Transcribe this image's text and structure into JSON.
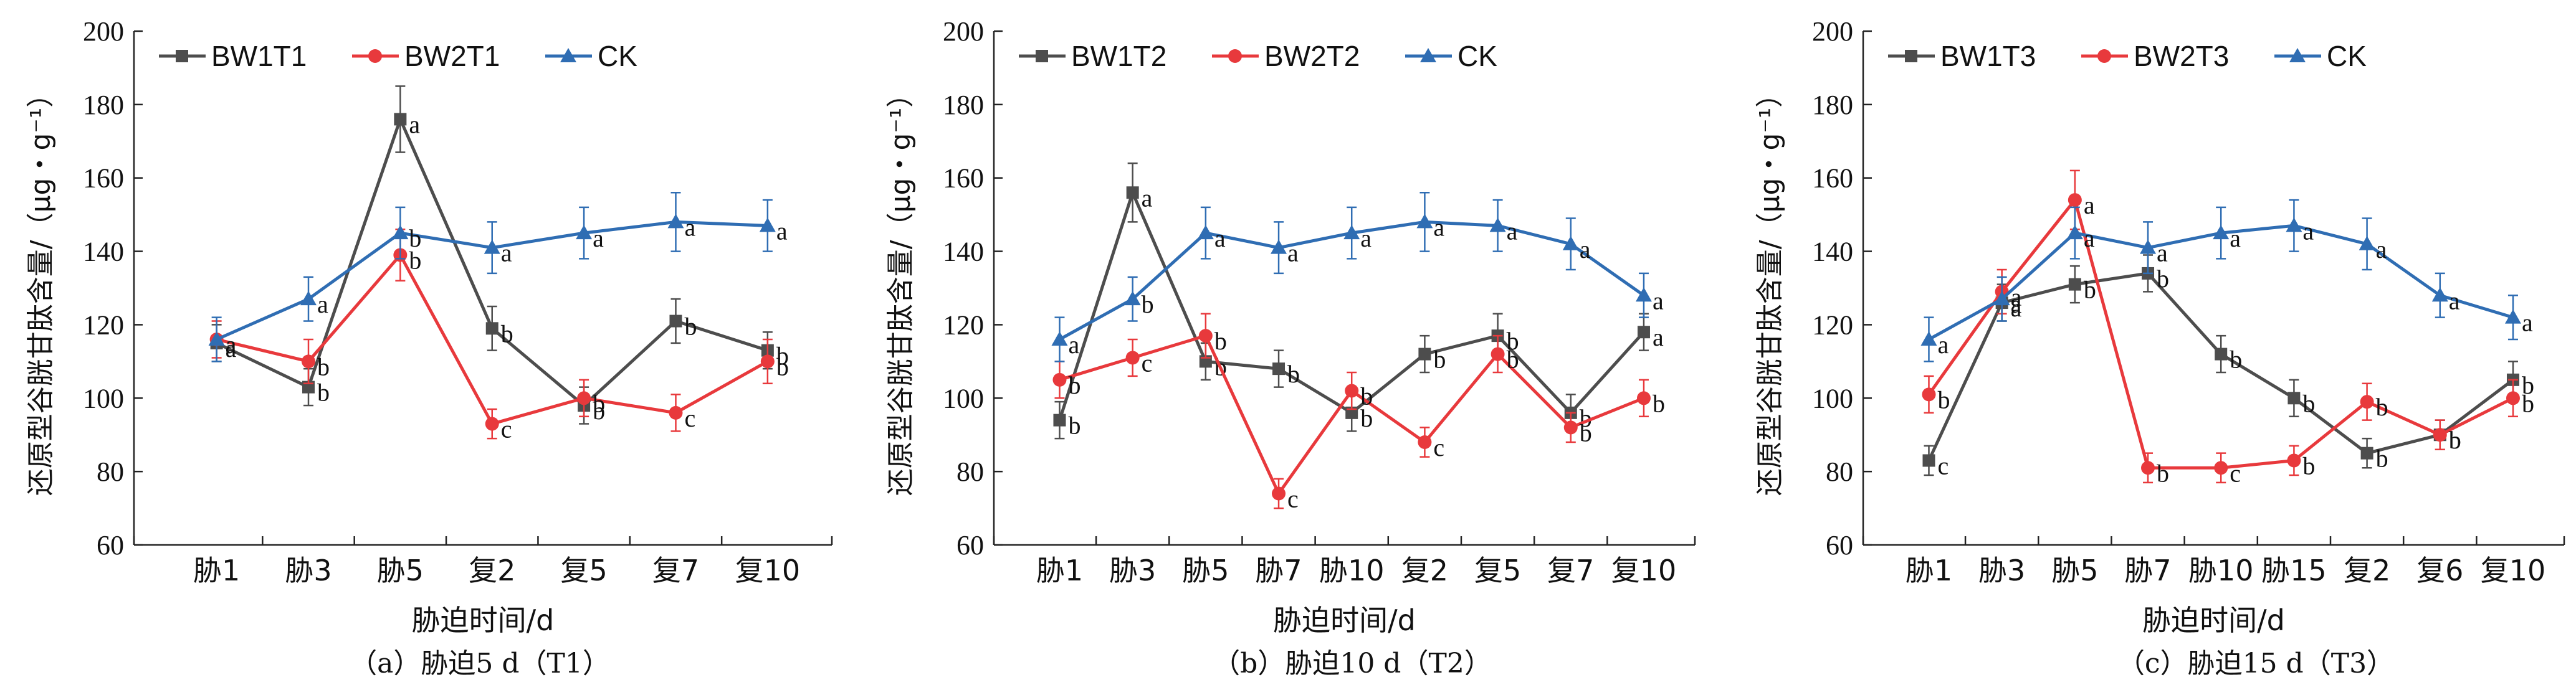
{
  "chart_data": [
    {
      "type": "line",
      "panel_caption": "（a）胁迫5 d（T1）",
      "xlabel": "胁迫时间/d",
      "ylabel": "还原型谷胱甘肽含量/（μg・g⁻¹）",
      "ylim": [
        60,
        200
      ],
      "yticks": [
        60,
        80,
        100,
        120,
        140,
        160,
        180,
        200
      ],
      "categories": [
        "胁1",
        "胁3",
        "胁5",
        "复2",
        "复5",
        "复7",
        "复10"
      ],
      "series": [
        {
          "name": "BW1T1",
          "color": "#4d4d4d",
          "marker": "square",
          "values": [
            115,
            103,
            176,
            119,
            98,
            121,
            113
          ],
          "errors": [
            5,
            5,
            9,
            6,
            5,
            6,
            5
          ],
          "letters": [
            "a",
            "b",
            "a",
            "b",
            "b",
            "b",
            "b"
          ]
        },
        {
          "name": "BW2T1",
          "color": "#e8393c",
          "marker": "circle",
          "values": [
            116,
            110,
            139,
            93,
            100,
            96,
            110
          ],
          "errors": [
            5,
            6,
            7,
            4,
            5,
            5,
            6
          ],
          "letters": [
            "a",
            "b",
            "b",
            "c",
            "b",
            "c",
            "b"
          ]
        },
        {
          "name": "CK",
          "color": "#2f6db3",
          "marker": "triangle",
          "values": [
            116,
            127,
            145,
            141,
            145,
            148,
            147
          ],
          "errors": [
            6,
            6,
            7,
            7,
            7,
            8,
            7
          ],
          "letters": [
            "a",
            "a",
            "b",
            "a",
            "a",
            "a",
            "a"
          ]
        }
      ]
    },
    {
      "type": "line",
      "panel_caption": "（b）胁迫10 d（T2）",
      "xlabel": "胁迫时间/d",
      "ylabel": "还原型谷胱甘肽含量/（μg・g⁻¹）",
      "ylim": [
        60,
        200
      ],
      "yticks": [
        60,
        80,
        100,
        120,
        140,
        160,
        180,
        200
      ],
      "categories": [
        "胁1",
        "胁3",
        "胁5",
        "胁7",
        "胁10",
        "复2",
        "复5",
        "复7",
        "复10"
      ],
      "series": [
        {
          "name": "BW1T2",
          "color": "#4d4d4d",
          "marker": "square",
          "values": [
            94,
            156,
            110,
            108,
            96,
            112,
            117,
            96,
            118
          ],
          "errors": [
            5,
            8,
            5,
            5,
            5,
            5,
            6,
            5,
            5
          ],
          "letters": [
            "b",
            "a",
            "b",
            "b",
            "b",
            "b",
            "b",
            "b",
            "a"
          ]
        },
        {
          "name": "BW2T2",
          "color": "#e8393c",
          "marker": "circle",
          "values": [
            105,
            111,
            117,
            74,
            102,
            88,
            112,
            92,
            100
          ],
          "errors": [
            5,
            5,
            6,
            4,
            5,
            4,
            5,
            4,
            5
          ],
          "letters": [
            "b",
            "c",
            "b",
            "c",
            "b",
            "c",
            "b",
            "b",
            "b"
          ]
        },
        {
          "name": "CK",
          "color": "#2f6db3",
          "marker": "triangle",
          "values": [
            116,
            127,
            145,
            141,
            145,
            148,
            147,
            142,
            128
          ],
          "errors": [
            6,
            6,
            7,
            7,
            7,
            8,
            7,
            7,
            6
          ],
          "letters": [
            "a",
            "b",
            "a",
            "a",
            "a",
            "a",
            "a",
            "a",
            "a"
          ]
        }
      ]
    },
    {
      "type": "line",
      "panel_caption": "（c）胁迫15 d（T3）",
      "xlabel": "胁迫时间/d",
      "ylabel": "还原型谷胱甘肽含量/（μg・g⁻¹）",
      "ylim": [
        60,
        200
      ],
      "yticks": [
        60,
        80,
        100,
        120,
        140,
        160,
        180,
        200
      ],
      "categories": [
        "胁1",
        "胁3",
        "胁5",
        "胁7",
        "胁10",
        "胁15",
        "复2",
        "复6",
        "复10"
      ],
      "series": [
        {
          "name": "BW1T3",
          "color": "#4d4d4d",
          "marker": "square",
          "values": [
            83,
            126,
            131,
            134,
            112,
            100,
            85,
            90,
            105
          ],
          "errors": [
            4,
            5,
            5,
            5,
            5,
            5,
            4,
            4,
            5
          ],
          "letters": [
            "c",
            "a",
            "b",
            "b",
            "b",
            "b",
            "b",
            "b",
            "b"
          ]
        },
        {
          "name": "BW2T3",
          "color": "#e8393c",
          "marker": "circle",
          "values": [
            101,
            129,
            154,
            81,
            81,
            83,
            99,
            90,
            100
          ],
          "errors": [
            5,
            6,
            8,
            4,
            4,
            4,
            5,
            4,
            5
          ],
          "letters": [
            "b",
            "a",
            "a",
            "b",
            "c",
            "b",
            "b",
            "b",
            "b"
          ]
        },
        {
          "name": "CK",
          "color": "#2f6db3",
          "marker": "triangle",
          "values": [
            116,
            127,
            145,
            141,
            145,
            147,
            142,
            128,
            122
          ],
          "errors": [
            6,
            6,
            7,
            7,
            7,
            7,
            7,
            6,
            6
          ],
          "letters": [
            "a",
            "a",
            "a",
            "a",
            "a",
            "a",
            "a",
            "a",
            "a"
          ]
        }
      ]
    }
  ]
}
